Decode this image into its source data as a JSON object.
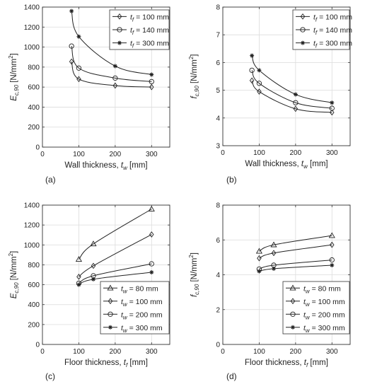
{
  "chart_data": [
    {
      "id": "a",
      "panel_label": "(a)",
      "type": "line",
      "ylabel": {
        "main": "E",
        "sub": "c,90",
        "unit": "[N/mm",
        "sup": "2",
        "close": "]"
      },
      "xlabel": {
        "main": "Wall thickness,  ",
        "var": "t",
        "sub": "w",
        "unit": " [mm]"
      },
      "xlim": [
        0,
        350
      ],
      "ylim": [
        0,
        1400
      ],
      "xticks": [
        0,
        100,
        200,
        300
      ],
      "yticks": [
        0,
        200,
        400,
        600,
        800,
        1000,
        1200,
        1400
      ],
      "grid": true,
      "legend_position": "top-right",
      "series": [
        {
          "name": "t_f = 100 mm",
          "legend": {
            "var": "t",
            "sub": "f",
            "rest": " = 100 mm"
          },
          "marker": "diamond",
          "x": [
            80,
            100,
            200,
            300
          ],
          "y": [
            855,
            680,
            615,
            600
          ]
        },
        {
          "name": "t_f = 140 mm",
          "legend": {
            "var": "t",
            "sub": "f",
            "rest": " = 140 mm"
          },
          "marker": "circle",
          "x": [
            80,
            100,
            200,
            300
          ],
          "y": [
            1010,
            790,
            690,
            655
          ]
        },
        {
          "name": "t_f = 300 mm",
          "legend": {
            "var": "t",
            "sub": "f",
            "rest": " = 300 mm"
          },
          "marker": "star",
          "x": [
            80,
            100,
            200,
            300
          ],
          "y": [
            1360,
            1105,
            810,
            725
          ]
        }
      ]
    },
    {
      "id": "b",
      "panel_label": "(b)",
      "type": "line",
      "ylabel": {
        "main": "f",
        "sub": "c,90",
        "unit": "[N/mm",
        "sup": "2",
        "close": "]"
      },
      "xlabel": {
        "main": "Wall thickness,  ",
        "var": "t",
        "sub": "w",
        "unit": " [mm]"
      },
      "xlim": [
        0,
        350
      ],
      "ylim": [
        3,
        8
      ],
      "xticks": [
        0,
        100,
        200,
        300
      ],
      "yticks": [
        3,
        4,
        5,
        6,
        7,
        8
      ],
      "grid": true,
      "legend_position": "top-right",
      "series": [
        {
          "name": "t_f = 100 mm",
          "legend": {
            "var": "t",
            "sub": "f",
            "rest": " = 100 mm"
          },
          "marker": "diamond",
          "x": [
            80,
            100,
            200,
            300
          ],
          "y": [
            5.35,
            4.95,
            4.33,
            4.2
          ]
        },
        {
          "name": "t_f = 140 mm",
          "legend": {
            "var": "t",
            "sub": "f",
            "rest": " = 140 mm"
          },
          "marker": "circle",
          "x": [
            80,
            100,
            200,
            300
          ],
          "y": [
            5.72,
            5.25,
            4.55,
            4.35
          ]
        },
        {
          "name": "t_f = 300 mm",
          "legend": {
            "var": "t",
            "sub": "f",
            "rest": " = 300 mm"
          },
          "marker": "star",
          "x": [
            80,
            100,
            200,
            300
          ],
          "y": [
            6.25,
            5.72,
            4.85,
            4.55
          ]
        }
      ]
    },
    {
      "id": "c",
      "panel_label": "(c)",
      "type": "line",
      "ylabel": {
        "main": "E",
        "sub": "c,90",
        "unit": "[N/mm",
        "sup": "2",
        "close": "]"
      },
      "xlabel": {
        "main": "Floor thickness,  ",
        "var": "t",
        "sub": "f",
        "unit": " [mm]"
      },
      "xlim": [
        0,
        350
      ],
      "ylim": [
        0,
        1400
      ],
      "xticks": [
        0,
        100,
        200,
        300
      ],
      "yticks": [
        0,
        200,
        400,
        600,
        800,
        1000,
        1200,
        1400
      ],
      "grid": true,
      "legend_position": "bottom-right",
      "series": [
        {
          "name": "t_w = 80 mm",
          "legend": {
            "var": "t",
            "sub": "w",
            "rest": " = 80 mm"
          },
          "marker": "triangle",
          "x": [
            100,
            140,
            300
          ],
          "y": [
            855,
            1010,
            1360
          ]
        },
        {
          "name": "t_w = 100 mm",
          "legend": {
            "var": "t",
            "sub": "w",
            "rest": " = 100 mm"
          },
          "marker": "diamond",
          "x": [
            100,
            140,
            300
          ],
          "y": [
            680,
            790,
            1105
          ]
        },
        {
          "name": "t_w = 200 mm",
          "legend": {
            "var": "t",
            "sub": "w",
            "rest": " = 200 mm"
          },
          "marker": "circle",
          "x": [
            100,
            140,
            300
          ],
          "y": [
            615,
            690,
            810
          ]
        },
        {
          "name": "t_w = 300 mm",
          "legend": {
            "var": "t",
            "sub": "w",
            "rest": " = 300 mm"
          },
          "marker": "star",
          "x": [
            100,
            140,
            300
          ],
          "y": [
            600,
            655,
            725
          ]
        }
      ]
    },
    {
      "id": "d",
      "panel_label": "(d)",
      "type": "line",
      "ylabel": {
        "main": "f",
        "sub": "c,90",
        "unit": "[N/mm",
        "sup": "2",
        "close": "]"
      },
      "xlabel": {
        "main": "Floor thickness,  ",
        "var": "t",
        "sub": "f",
        "unit": " [mm]"
      },
      "xlim": [
        0,
        350
      ],
      "ylim": [
        0,
        8
      ],
      "xticks": [
        0,
        100,
        200,
        300
      ],
      "yticks": [
        0,
        2,
        4,
        6,
        8
      ],
      "grid": true,
      "legend_position": "bottom-right",
      "series": [
        {
          "name": "t_w = 80 mm",
          "legend": {
            "var": "t",
            "sub": "w",
            "rest": " = 80 mm"
          },
          "marker": "triangle",
          "x": [
            100,
            140,
            300
          ],
          "y": [
            5.35,
            5.72,
            6.25
          ]
        },
        {
          "name": "t_w = 100 mm",
          "legend": {
            "var": "t",
            "sub": "w",
            "rest": " = 100 mm"
          },
          "marker": "diamond",
          "x": [
            100,
            140,
            300
          ],
          "y": [
            4.95,
            5.25,
            5.72
          ]
        },
        {
          "name": "t_w = 200 mm",
          "legend": {
            "var": "t",
            "sub": "w",
            "rest": " = 200 mm"
          },
          "marker": "circle",
          "x": [
            100,
            140,
            300
          ],
          "y": [
            4.33,
            4.55,
            4.85
          ]
        },
        {
          "name": "t_w = 300 mm",
          "legend": {
            "var": "t",
            "sub": "w",
            "rest": " = 300 mm"
          },
          "marker": "star",
          "x": [
            100,
            140,
            300
          ],
          "y": [
            4.2,
            4.35,
            4.55
          ]
        }
      ]
    }
  ]
}
